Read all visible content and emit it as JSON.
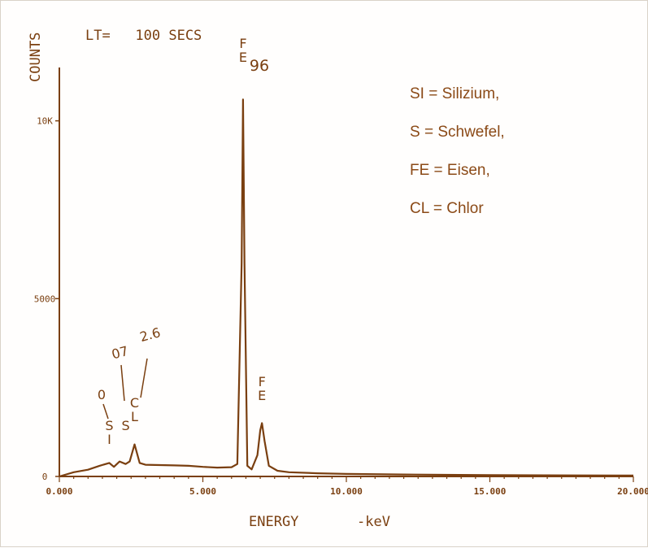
{
  "chart_data": {
    "type": "line",
    "header_text": "LT=   100 SECS",
    "xlabel": "ENERGY",
    "xunit": "-keV",
    "ylabel": "COUNTS",
    "xlim": [
      0,
      20
    ],
    "ylim": [
      0,
      11500
    ],
    "x_ticks": [
      {
        "value": 0,
        "label": "0.000"
      },
      {
        "value": 5,
        "label": "5.000"
      },
      {
        "value": 10,
        "label": "10.000"
      },
      {
        "value": 15,
        "label": "15.000"
      },
      {
        "value": 20,
        "label": "20.000"
      }
    ],
    "y_ticks": [
      {
        "value": 0,
        "label": "0"
      },
      {
        "value": 5000,
        "label": "5000"
      },
      {
        "value": 10000,
        "label": "10K"
      }
    ],
    "series": [
      {
        "x": [
          0.0,
          0.5,
          1.0,
          1.4,
          1.74,
          1.9,
          2.1,
          2.31,
          2.45,
          2.62,
          2.8,
          3.0,
          3.5,
          4.0,
          4.5,
          5.0,
          5.5,
          6.0,
          6.2,
          6.35,
          6.4,
          6.45,
          6.55,
          6.7,
          6.9,
          7.0,
          7.06,
          7.15,
          7.3,
          7.6,
          8.0,
          9.0,
          10.0,
          12.0,
          15.0,
          18.0,
          20.0
        ],
        "y": [
          0,
          120,
          190,
          300,
          380,
          270,
          420,
          350,
          420,
          900,
          380,
          330,
          320,
          310,
          300,
          270,
          250,
          260,
          350,
          6000,
          10600,
          6000,
          300,
          200,
          600,
          1300,
          1500,
          1000,
          300,
          160,
          120,
          90,
          70,
          55,
          40,
          30,
          25
        ]
      }
    ],
    "peak_labels": [
      {
        "x": 1.74,
        "element": [
          "S",
          "I"
        ],
        "value": "0"
      },
      {
        "x": 2.31,
        "element": [
          "S"
        ],
        "value": "07"
      },
      {
        "x": 2.62,
        "element": [
          "C",
          "L"
        ],
        "value": "2.6"
      },
      {
        "x": 6.4,
        "element": [
          "F",
          "E"
        ],
        "value": "96"
      },
      {
        "x": 7.06,
        "element": [
          "F",
          "E"
        ],
        "value": ""
      }
    ],
    "legend": [
      "SI = Silizium,",
      "S  = Schwefel,",
      "FE = Eisen,",
      "CL = Chlor"
    ]
  }
}
